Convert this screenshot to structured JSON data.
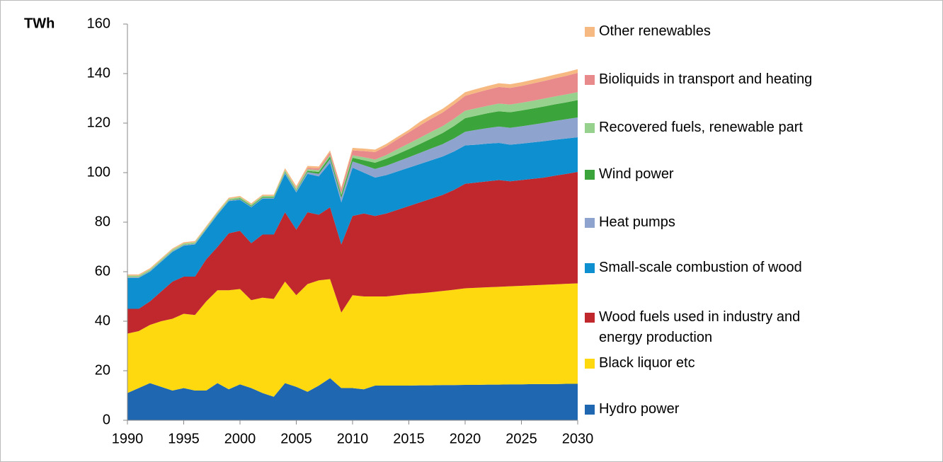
{
  "chart_data": {
    "type": "stacked_area",
    "y_label": "TWh",
    "x": [
      1990,
      1991,
      1992,
      1993,
      1994,
      1995,
      1996,
      1997,
      1998,
      1999,
      2000,
      2001,
      2002,
      2003,
      2004,
      2005,
      2006,
      2007,
      2008,
      2009,
      2010,
      2011,
      2012,
      2013,
      2014,
      2015,
      2016,
      2017,
      2018,
      2019,
      2020,
      2021,
      2022,
      2023,
      2024,
      2025,
      2026,
      2027,
      2028,
      2029,
      2030
    ],
    "xlim": [
      1990,
      2030
    ],
    "xticks": [
      1990,
      1995,
      2000,
      2005,
      2010,
      2015,
      2020,
      2025,
      2030
    ],
    "ylim": [
      0,
      160
    ],
    "yticks": [
      0,
      20,
      40,
      60,
      80,
      100,
      120,
      140,
      160
    ],
    "series": [
      {
        "name": "Hydro power",
        "color": "#1f67b0",
        "values": [
          11,
          13,
          15,
          13.5,
          12,
          13,
          12,
          12,
          15,
          12.5,
          14.5,
          13,
          11,
          9.5,
          15,
          13.5,
          11.5,
          14,
          17,
          13,
          13,
          12.5,
          14,
          14,
          14,
          14,
          14.1,
          14.1,
          14.2,
          14.2,
          14.3,
          14.3,
          14.4,
          14.4,
          14.5,
          14.5,
          14.6,
          14.6,
          14.6,
          14.7,
          14.7
        ]
      },
      {
        "name": "Black liquor etc",
        "color": "#ffd910",
        "values": [
          24,
          23,
          23.5,
          26.5,
          29,
          30,
          30.5,
          36,
          37.5,
          40,
          38.5,
          35.5,
          38.5,
          39.5,
          41,
          37,
          43.5,
          42.5,
          40,
          30.5,
          37.5,
          37.5,
          36,
          36,
          36.5,
          37,
          37.2,
          37.6,
          38,
          38.5,
          39,
          39.2,
          39.3,
          39.5,
          39.6,
          39.8,
          39.9,
          40.1,
          40.3,
          40.4,
          40.6
        ]
      },
      {
        "name": "Wood fuels used  in industry and energy production",
        "color": "#c0282d",
        "values": [
          10,
          9,
          9.5,
          12,
          15,
          15,
          15.5,
          17,
          17.5,
          23,
          23.5,
          23,
          25.5,
          26,
          28,
          26.5,
          29,
          26.5,
          29,
          27.5,
          32,
          33.5,
          32.5,
          33.5,
          34.5,
          35.5,
          36.7,
          37.8,
          38.8,
          40.3,
          42.2,
          42.5,
          42.8,
          43.1,
          42.4,
          42.7,
          43,
          43.3,
          43.9,
          44.4,
          45
        ]
      },
      {
        "name": "Small-scale combustion of wood",
        "color": "#0e8fcf",
        "values": [
          12.5,
          12.5,
          12,
          12,
          12,
          12.5,
          13,
          12,
          13,
          13,
          12.5,
          14.5,
          14.5,
          14.5,
          15.5,
          15,
          15.5,
          15.5,
          18,
          17,
          19.5,
          16.5,
          15.5,
          15.5,
          15.5,
          15.5,
          15.5,
          15.5,
          15.5,
          15.5,
          15.5,
          15.3,
          15.2,
          15,
          14.8,
          14.7,
          14.7,
          14.7,
          14.5,
          14.3,
          14
        ]
      },
      {
        "name": "Heat pumps",
        "color": "#8ea4cf",
        "values": [
          0.3,
          0.3,
          0.3,
          0.3,
          0.3,
          0.3,
          0.3,
          0.3,
          0.3,
          0.3,
          0.3,
          0.3,
          0.3,
          0.3,
          0.5,
          0.5,
          0.7,
          1,
          1.5,
          1.8,
          2.5,
          3,
          3.5,
          3.8,
          4,
          4.2,
          4.5,
          4.8,
          5,
          5.3,
          5.5,
          6,
          6.3,
          6.6,
          6.8,
          7,
          7.2,
          7.4,
          7.6,
          7.8,
          8
        ]
      },
      {
        "name": "Wind power",
        "color": "#3ba43a",
        "values": [
          0.1,
          0.1,
          0.1,
          0.1,
          0.1,
          0.1,
          0.1,
          0.1,
          0.1,
          0.1,
          0.3,
          0.3,
          0.3,
          0.3,
          0.3,
          0.3,
          0.5,
          0.8,
          1,
          1.2,
          1.5,
          2,
          2.5,
          2.8,
          3,
          3.3,
          3.6,
          4,
          4.5,
          5,
          5.5,
          5.7,
          6,
          6.2,
          6.3,
          6.4,
          6.5,
          6.6,
          6.7,
          6.8,
          7
        ]
      },
      {
        "name": "Recovered fuels, renewable part",
        "color": "#97d18e",
        "values": [
          0.5,
          0.5,
          0.5,
          0.5,
          0.5,
          0.5,
          0.5,
          0.5,
          0.5,
          0.5,
          0.5,
          0.5,
          0.5,
          0.5,
          0.7,
          0.7,
          0.7,
          0.7,
          0.7,
          0.7,
          1,
          1.2,
          1.3,
          1.5,
          2,
          2.3,
          2.5,
          2.7,
          2.8,
          2.9,
          3,
          3,
          3,
          3.1,
          3.1,
          3.1,
          3.1,
          3.2,
          3.2,
          3.2,
          3.2
        ]
      },
      {
        "name": "Bioliquids in transport and heating",
        "color": "#e88a8c",
        "values": [
          0,
          0,
          0,
          0,
          0,
          0,
          0,
          0,
          0,
          0,
          0,
          0,
          0,
          0,
          0,
          0.3,
          0.5,
          0.7,
          1,
          1.5,
          2,
          2.5,
          3,
          3.5,
          4,
          4.5,
          5,
          5.3,
          5.5,
          5.8,
          6,
          6.3,
          6.5,
          6.7,
          6.7,
          6.8,
          7,
          7.1,
          7.3,
          7.5,
          7.8
        ]
      },
      {
        "name": "Other renewables",
        "color": "#f7b982",
        "values": [
          0.5,
          0.5,
          0.5,
          0.5,
          0.5,
          0.5,
          0.5,
          0.5,
          0.5,
          0.5,
          0.5,
          0.5,
          0.5,
          0.5,
          0.8,
          0.8,
          0.8,
          0.8,
          0.8,
          0.8,
          1,
          1,
          1,
          1,
          1,
          1,
          1.5,
          1.5,
          1.5,
          1.5,
          1.5,
          1.5,
          1.5,
          1.5,
          1.5,
          1.5,
          1.5,
          1.5,
          1.5,
          1.5,
          1.5
        ]
      }
    ],
    "legend": "right"
  }
}
